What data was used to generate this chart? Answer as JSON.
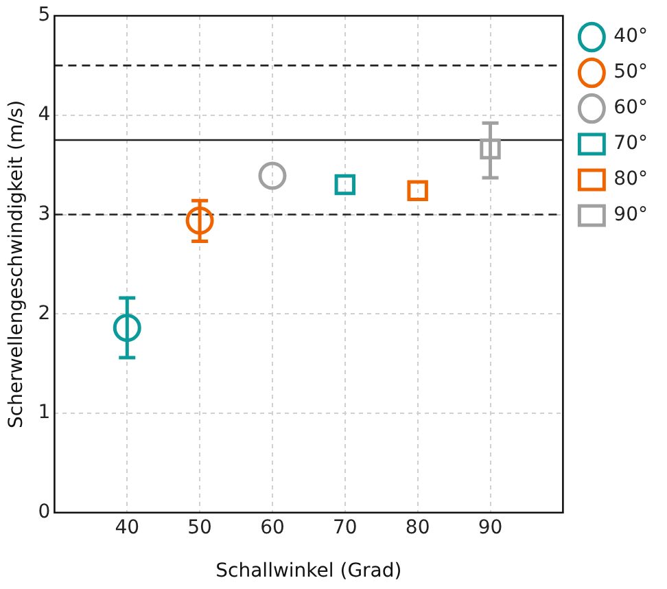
{
  "chart_data": {
    "type": "scatter",
    "xlabel": "Schallwinkel (Grad)",
    "ylabel": "Scherwellengeschwindigkeit (m/s)",
    "xlim": [
      30,
      100
    ],
    "xticks": [
      40,
      50,
      60,
      70,
      80,
      90
    ],
    "ylim": [
      0,
      5
    ],
    "yticks": [
      0,
      1,
      2,
      3,
      4,
      5
    ],
    "grid": true,
    "legend": "right",
    "series": [
      {
        "name": "40°",
        "color": "#0a9a9a",
        "marker": "circle",
        "x": [
          40
        ],
        "values": [
          1.86
        ],
        "errors": [
          [
            1.56,
            2.16
          ]
        ]
      },
      {
        "name": "50°",
        "color": "#f06400",
        "marker": "circle",
        "x": [
          50
        ],
        "values": [
          2.94
        ],
        "errors": [
          [
            2.73,
            3.14
          ]
        ]
      },
      {
        "name": "60°",
        "color": "#a0a0a0",
        "marker": "circle",
        "x": [
          60
        ],
        "values": [
          3.39
        ]
      },
      {
        "name": "70°",
        "color": "#0a9a9a",
        "marker": "square",
        "x": [
          70
        ],
        "values": [
          3.3
        ]
      },
      {
        "name": "80°",
        "color": "#f06400",
        "marker": "square",
        "x": [
          80
        ],
        "values": [
          3.24
        ]
      },
      {
        "name": "90°",
        "color": "#a0a0a0",
        "marker": "square",
        "x": [
          90
        ],
        "values": [
          3.66
        ],
        "errors": [
          [
            3.37,
            3.92
          ]
        ]
      }
    ],
    "ref_lines": [
      {
        "axis": "y",
        "value": 4.5,
        "line_style": "dashed"
      },
      {
        "axis": "y",
        "value": 3.75,
        "line_style": "solid"
      },
      {
        "axis": "y",
        "value": 3,
        "line_style": "dashed"
      }
    ]
  }
}
